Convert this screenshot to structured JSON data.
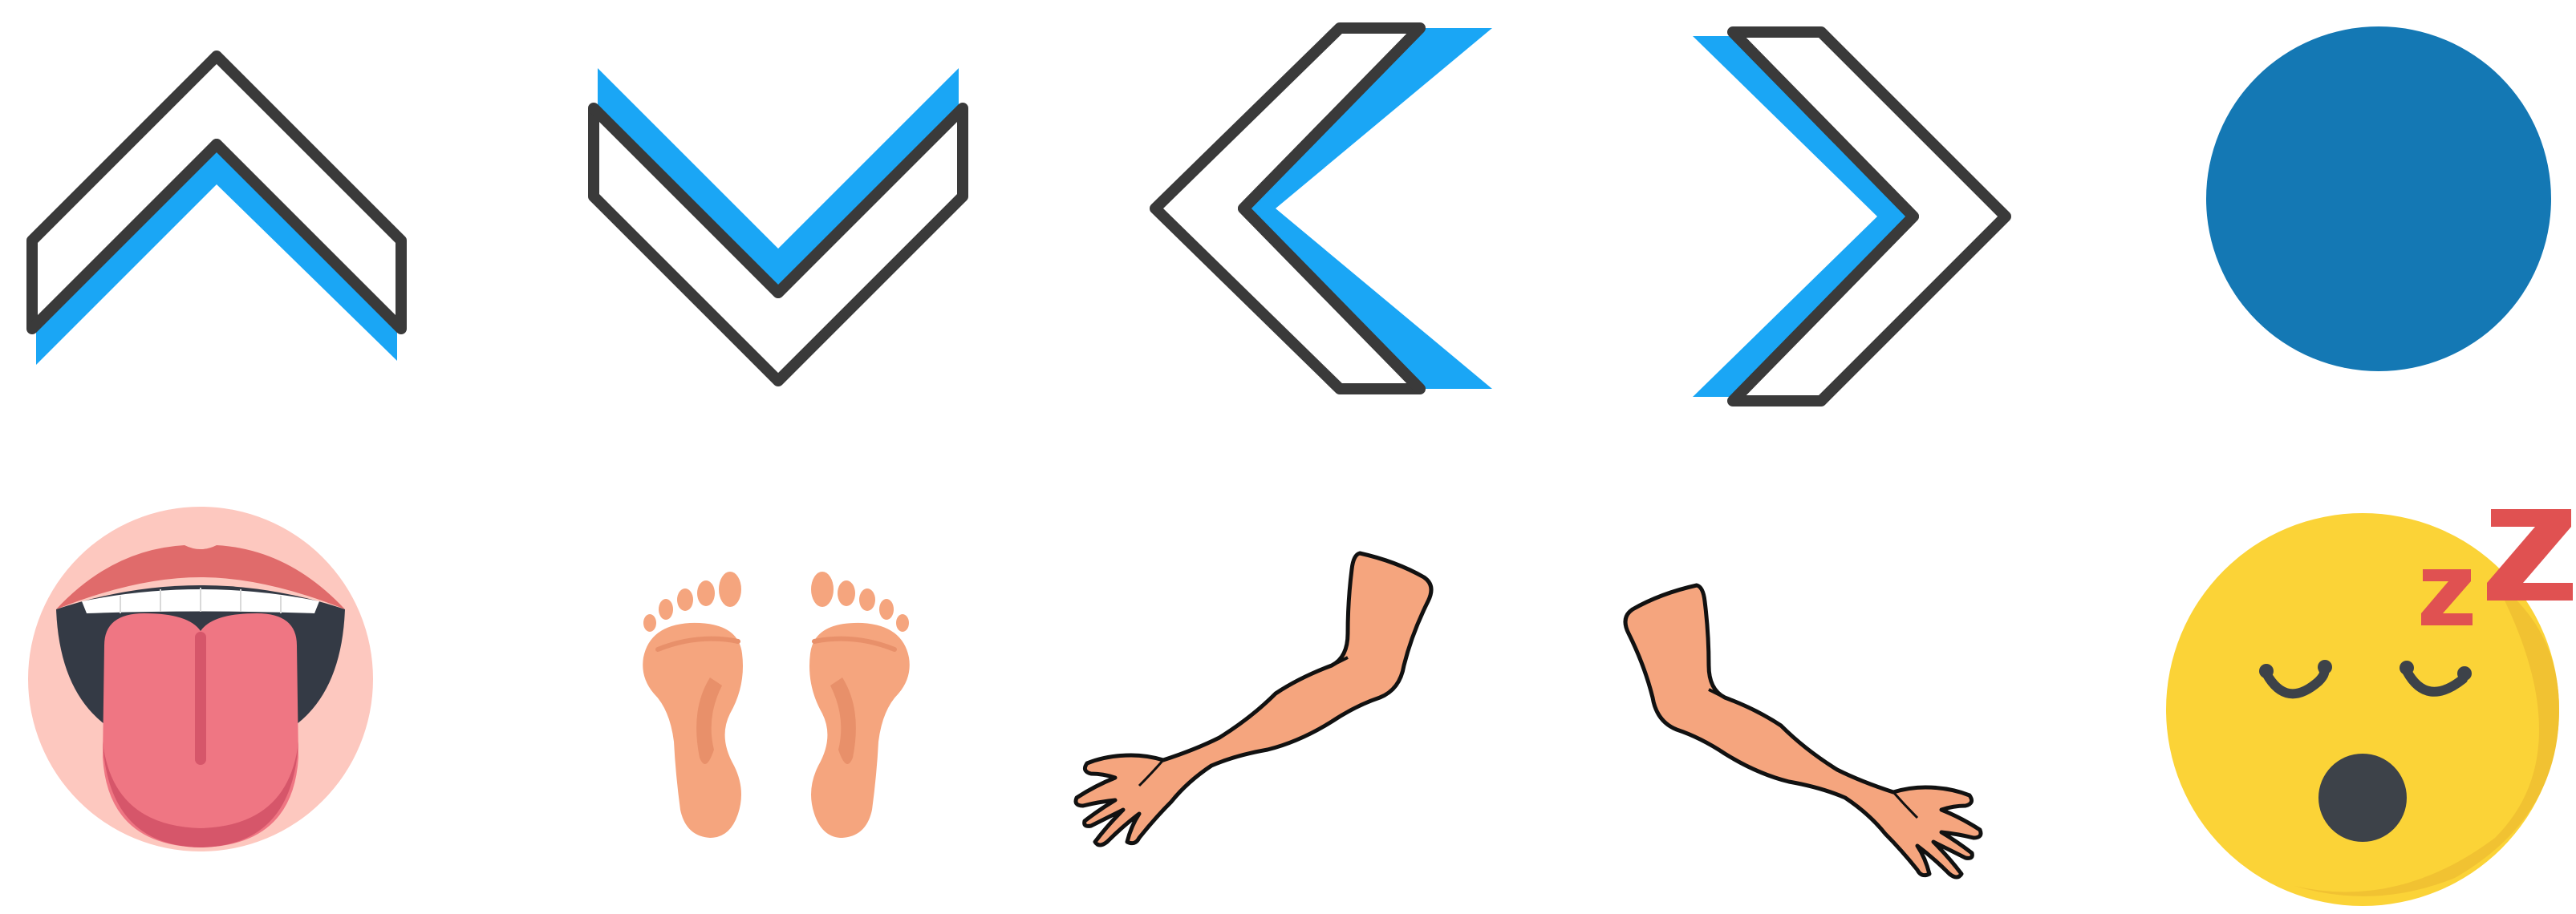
{
  "icons": [
    {
      "name": "chevron-up-icon"
    },
    {
      "name": "chevron-down-icon"
    },
    {
      "name": "chevron-left-icon"
    },
    {
      "name": "chevron-right-icon"
    },
    {
      "name": "blue-circle-icon"
    },
    {
      "name": "tongue-out-mouth-icon"
    },
    {
      "name": "bare-feet-icon"
    },
    {
      "name": "left-arm-icon"
    },
    {
      "name": "right-arm-icon"
    },
    {
      "name": "sleeping-face-icon"
    }
  ],
  "colors": {
    "chevron_outline": "#3a3a3a",
    "chevron_accent": "#1aa6f5",
    "circle": "#1478b4",
    "skin": "#f5a57e",
    "skin_shade": "#e8906a",
    "tongue": "#ef7683",
    "mouth_bg": "#fdc8bf",
    "lips": "#e06b6b",
    "emoji_face": "#fbd337",
    "emoji_shadow": "#f1c232",
    "zzz": "#e05151"
  }
}
